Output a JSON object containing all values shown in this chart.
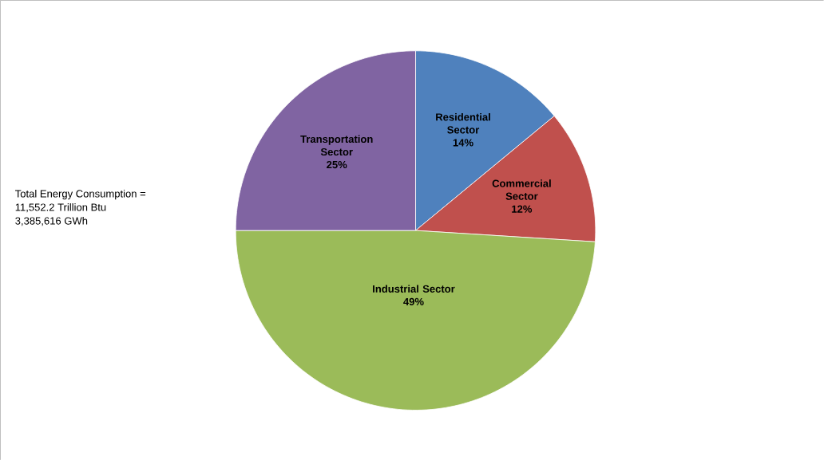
{
  "chart_data": {
    "type": "pie",
    "categories": [
      "Residential Sector",
      "Commercial Sector",
      "Industrial Sector",
      "Transportation Sector"
    ],
    "values": [
      14,
      12,
      49,
      25
    ],
    "value_labels": [
      "14%",
      "12%",
      "49%",
      "25%"
    ],
    "colors": [
      "#4f81bd",
      "#c0504d",
      "#9bbb59",
      "#8064a2"
    ],
    "annotations": [
      "Total Energy Consumption =",
      "11,552.2 Trillion Btu",
      "3,385,616 GWh"
    ]
  }
}
